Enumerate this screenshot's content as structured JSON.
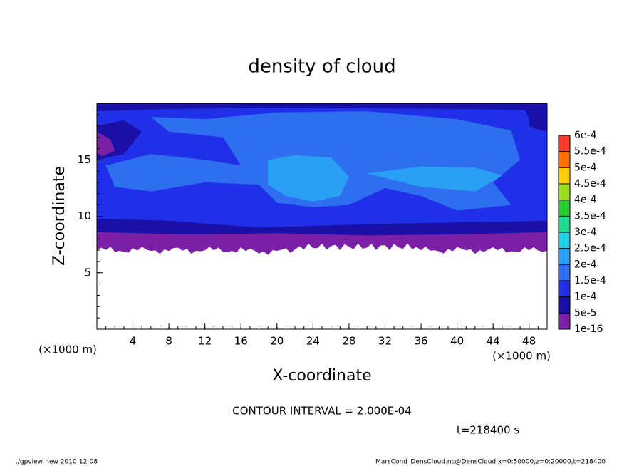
{
  "chart_data": {
    "type": "contour",
    "title": "density of cloud",
    "xlabel": "X-coordinate",
    "ylabel": "Z-coordinate",
    "x_unit": "(×1000 m)",
    "xlim": [
      0,
      50
    ],
    "ylim": [
      0,
      20
    ],
    "xticks": [
      4,
      8,
      12,
      16,
      20,
      24,
      28,
      32,
      36,
      40,
      44,
      48
    ],
    "yticks": [
      5,
      10,
      15
    ],
    "levels": [
      {
        "value": 1e-16,
        "label": "1e-16"
      },
      {
        "value": 5e-05,
        "label": "5e-5"
      },
      {
        "value": 0.0001,
        "label": "1e-4"
      },
      {
        "value": 0.00015,
        "label": "1.5e-4"
      },
      {
        "value": 0.0002,
        "label": "2e-4"
      },
      {
        "value": 0.00025,
        "label": "2.5e-4"
      },
      {
        "value": 0.0003,
        "label": "3e-4"
      },
      {
        "value": 0.00035,
        "label": "3.5e-4"
      },
      {
        "value": 0.0004,
        "label": "4e-4"
      },
      {
        "value": 0.00045,
        "label": "4.5e-4"
      },
      {
        "value": 0.0005,
        "label": "5e-4"
      },
      {
        "value": 0.00055,
        "label": "5.5e-4"
      },
      {
        "value": 0.0006,
        "label": "6e-4"
      }
    ],
    "colors": [
      "#7a1fa6",
      "#1a10a8",
      "#2030e8",
      "#2e6ff0",
      "#2aa0f4",
      "#20d0e8",
      "#20d890",
      "#28cc30",
      "#9ade20",
      "#ffcc00",
      "#ff7000",
      "#ff3a2a"
    ],
    "annotations": {
      "contour_interval": "CONTOUR INTERVAL = 2.000E-04",
      "time": "t=218400 s",
      "program": "./gpview-new   2010-12-08",
      "source": "MarsCond_DensCloud.nc@DensCloud,x=0:50000,z=0:20000,t=218400"
    }
  }
}
